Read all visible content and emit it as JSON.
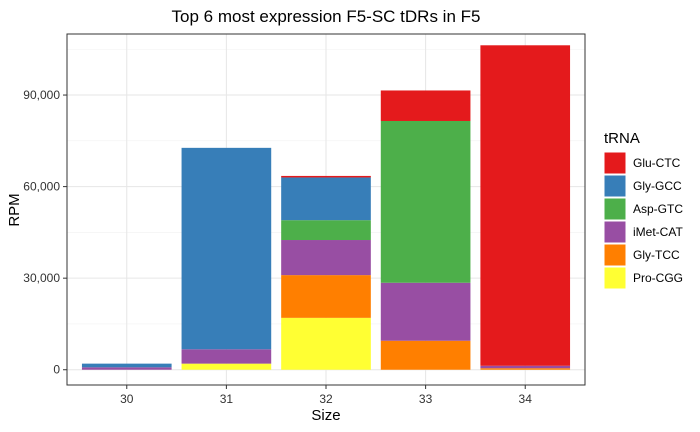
{
  "chart_data": {
    "type": "bar",
    "stacked": true,
    "title": "Top 6 most expression F5-SC tDRs in F5",
    "xlabel": "Size",
    "ylabel": "RPM",
    "categories": [
      "30",
      "31",
      "32",
      "33",
      "34"
    ],
    "ylim": [
      0,
      107000
    ],
    "yticks": [
      0,
      30000,
      60000,
      90000
    ],
    "ytick_labels": [
      "0",
      "30,000",
      "60,000",
      "90,000"
    ],
    "grid": true,
    "legend": {
      "title": "tRNA",
      "position": "right"
    },
    "stack_order_bottom_to_top": [
      "Pro-CGG",
      "Gly-TCC",
      "iMet-CAT",
      "Asp-GTC",
      "Gly-GCC",
      "Glu-CTC"
    ],
    "series": [
      {
        "name": "Glu-CTC",
        "color": "#E41A1C",
        "values": [
          0,
          0,
          500,
          10000,
          105000
        ]
      },
      {
        "name": "Gly-GCC",
        "color": "#377EB8",
        "values": [
          1200,
          66000,
          14000,
          0,
          0
        ]
      },
      {
        "name": "Asp-GTC",
        "color": "#4DAF4A",
        "values": [
          0,
          0,
          6500,
          53000,
          0
        ]
      },
      {
        "name": "iMet-CAT",
        "color": "#984EA3",
        "values": [
          800,
          4700,
          11500,
          19000,
          800
        ]
      },
      {
        "name": "Gly-TCC",
        "color": "#FF7F00",
        "values": [
          0,
          0,
          14000,
          9500,
          500
        ]
      },
      {
        "name": "Pro-CGG",
        "color": "#FFFF33",
        "values": [
          0,
          2000,
          17000,
          0,
          0
        ]
      }
    ]
  }
}
